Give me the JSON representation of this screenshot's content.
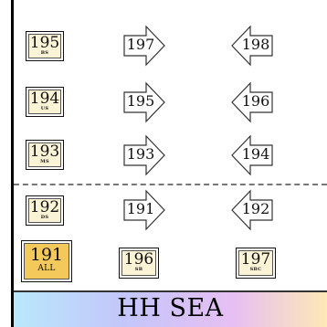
{
  "floors": [
    {
      "num": "195",
      "sub": "BS"
    },
    {
      "num": "194",
      "sub": "US"
    },
    {
      "num": "193",
      "sub": "MS"
    },
    {
      "num": "192",
      "sub": "DS"
    },
    {
      "num": "191",
      "sub": "ALL"
    }
  ],
  "up_arrows": [
    "197",
    "195",
    "193",
    "191"
  ],
  "down_arrows": [
    "198",
    "196",
    "194",
    "192"
  ],
  "bottom_boxes": [
    {
      "num": "196",
      "sub": "SB"
    },
    {
      "num": "197",
      "sub": "SBC"
    }
  ],
  "banner": {
    "title": "HH SEA"
  },
  "colors": {
    "box_fill": "#fbf3d5",
    "active_fill": "#f2c95a"
  }
}
